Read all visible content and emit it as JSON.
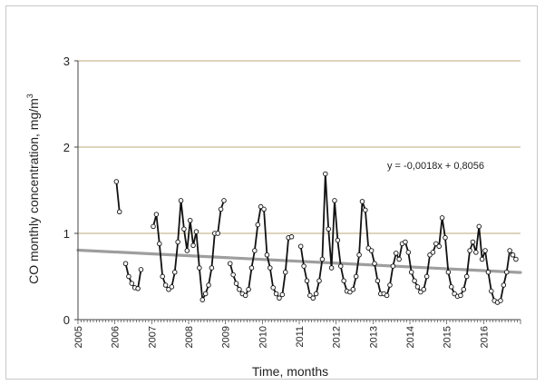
{
  "chart_data": {
    "type": "line",
    "title": "",
    "xlabel": "Time, months",
    "ylabel_main": "CO monthly concentration, mg/m",
    "ylabel_sup": "3",
    "ylim": [
      0,
      3
    ],
    "yticks": [
      "0",
      "1",
      "2",
      "3"
    ],
    "xlim": [
      2005,
      2017
    ],
    "xticks": [
      "2005",
      "2006",
      "2007",
      "2008",
      "2009",
      "2010",
      "2011",
      "2012",
      "2013",
      "2014",
      "2015",
      "2016"
    ],
    "grid": "horizontal",
    "colors": {
      "series": "#111111",
      "trend": "#9e9e9e",
      "grid": "#b8a878",
      "axis": "#444444"
    },
    "series": [
      {
        "values": [
          1.6,
          1.25,
          null,
          0.65,
          0.5,
          0.42,
          0.37,
          0.36,
          0.58,
          null,
          null,
          null,
          1.08,
          1.22,
          0.88,
          0.5,
          0.4,
          0.35,
          0.38,
          0.55,
          0.9,
          1.38,
          1.05,
          0.8,
          1.15,
          0.86,
          1.02,
          0.6,
          0.23,
          0.3,
          0.4,
          0.6,
          1.0,
          1.0,
          1.28,
          1.38,
          null,
          0.65,
          0.52,
          0.42,
          0.35,
          0.3,
          0.28,
          0.35,
          0.6,
          0.8,
          1.1,
          1.31,
          1.28,
          0.75,
          0.6,
          0.37,
          0.3,
          0.25,
          0.29,
          0.55,
          0.95,
          0.96,
          null,
          null,
          0.85,
          0.62,
          0.45,
          0.28,
          0.25,
          0.3,
          0.45,
          0.7,
          1.69,
          1.05,
          0.6,
          1.38,
          0.92,
          0.62,
          0.45,
          0.33,
          0.32,
          0.35,
          0.5,
          0.75,
          1.37,
          1.27,
          0.83,
          0.8,
          0.65,
          0.45,
          0.3,
          0.3,
          0.28,
          0.4,
          0.62,
          0.77,
          0.7,
          0.88,
          0.9,
          0.78,
          0.55,
          0.45,
          0.38,
          0.32,
          0.35,
          0.5,
          0.75,
          0.78,
          0.88,
          0.85,
          1.18,
          0.95,
          0.55,
          0.38,
          0.3,
          0.27,
          0.28,
          0.35,
          0.5,
          0.8,
          0.9,
          0.78,
          1.08,
          0.7,
          0.8,
          0.55,
          0.33,
          0.22,
          0.2,
          0.22,
          0.4,
          0.55,
          0.8,
          0.75,
          0.7,
          null
        ]
      }
    ],
    "trendline": {
      "equation": "y = -0,0018x + 0,8056",
      "slope": -0.0018,
      "intercept": 0.8056
    }
  }
}
